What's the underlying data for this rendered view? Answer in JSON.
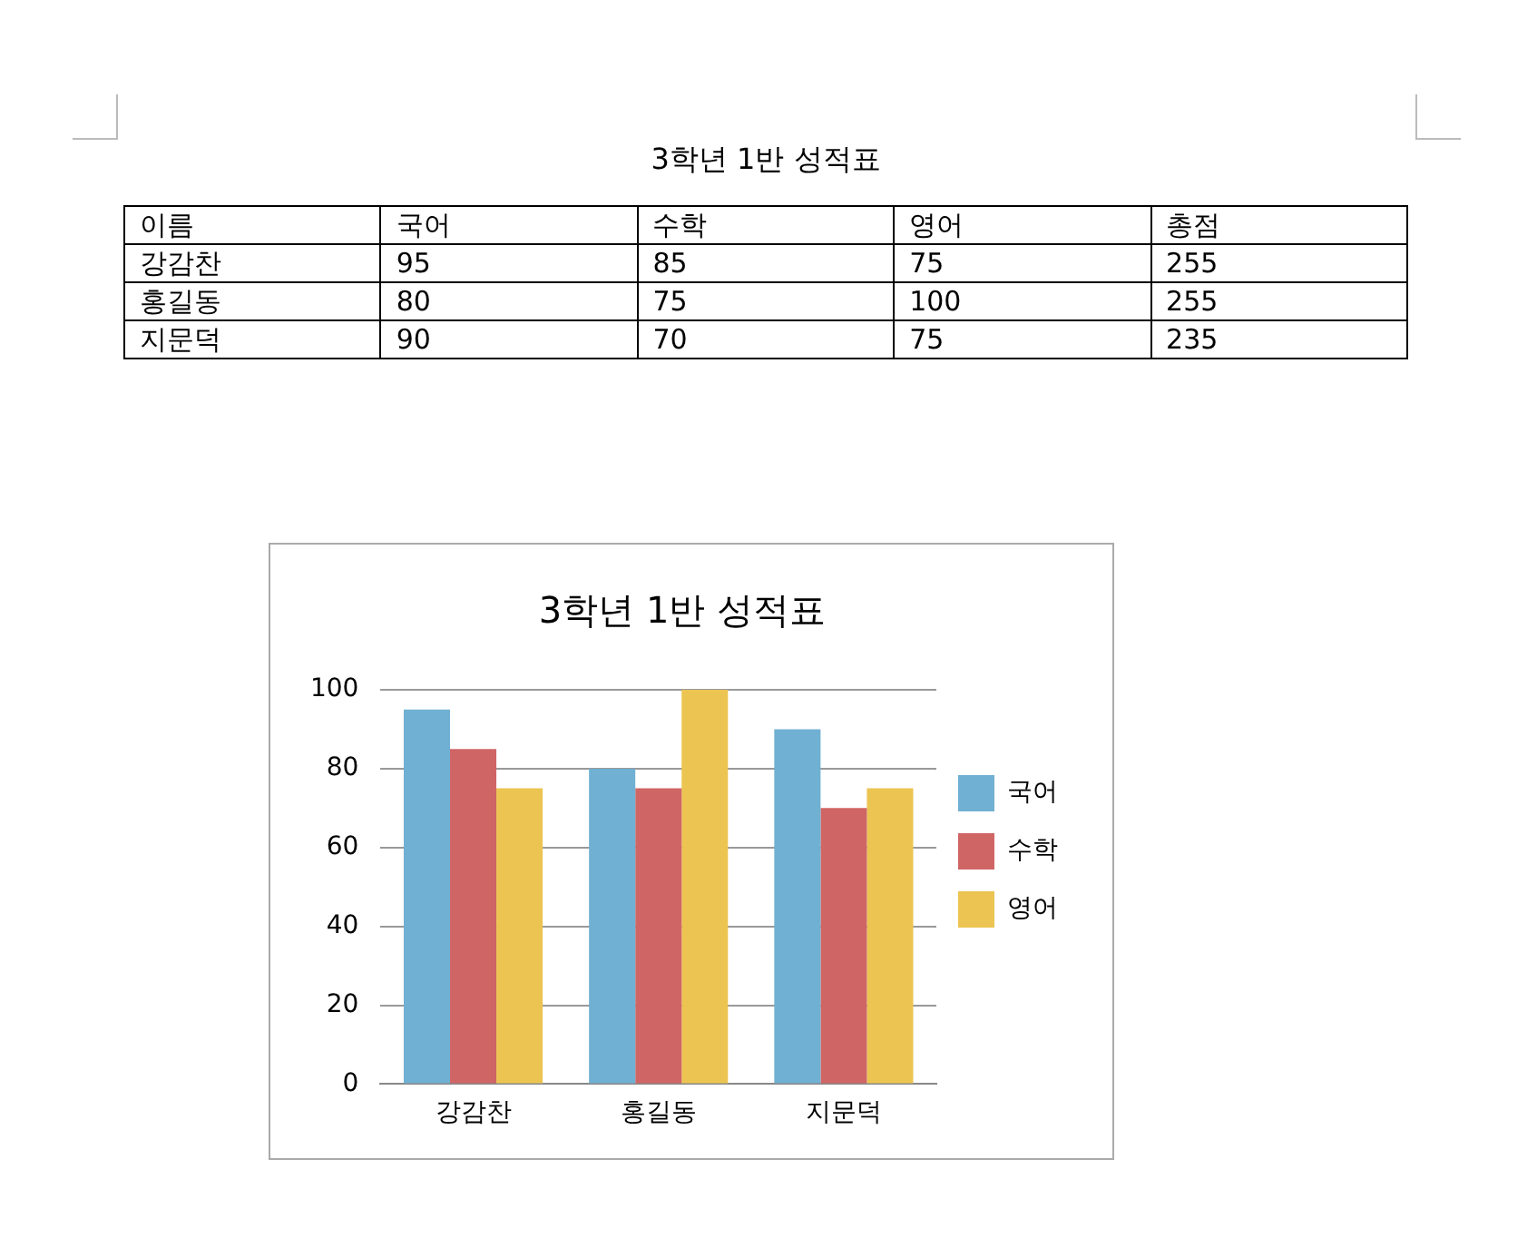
{
  "chart_data": [
    {
      "type": "other",
      "title": "3학년 1반 성적표",
      "categories": [
        "이름",
        "국어",
        "수학",
        "영어",
        "총점"
      ],
      "annotations": [
        "강감찬",
        "95",
        "85",
        "75",
        "255",
        "홍길동",
        "80",
        "75",
        "100",
        "255",
        "지문덕",
        "90",
        "70",
        "75",
        "235"
      ]
    },
    {
      "type": "bar",
      "title": "3학년 1반 성적표",
      "categories": [
        "강감찬",
        "홍길동",
        "지문덕"
      ],
      "series": [
        {
          "name": "국어",
          "color": "#70b0d2",
          "values": [
            95,
            80,
            90
          ]
        },
        {
          "name": "수학",
          "color": "#d06565",
          "values": [
            85,
            75,
            70
          ]
        },
        {
          "name": "영어",
          "color": "#ecc451",
          "values": [
            75,
            100,
            75
          ]
        }
      ],
      "ylim": [
        0,
        100
      ],
      "yticks": [
        0,
        20,
        40,
        60,
        80,
        100
      ],
      "grid": "y",
      "legend": "right"
    }
  ]
}
